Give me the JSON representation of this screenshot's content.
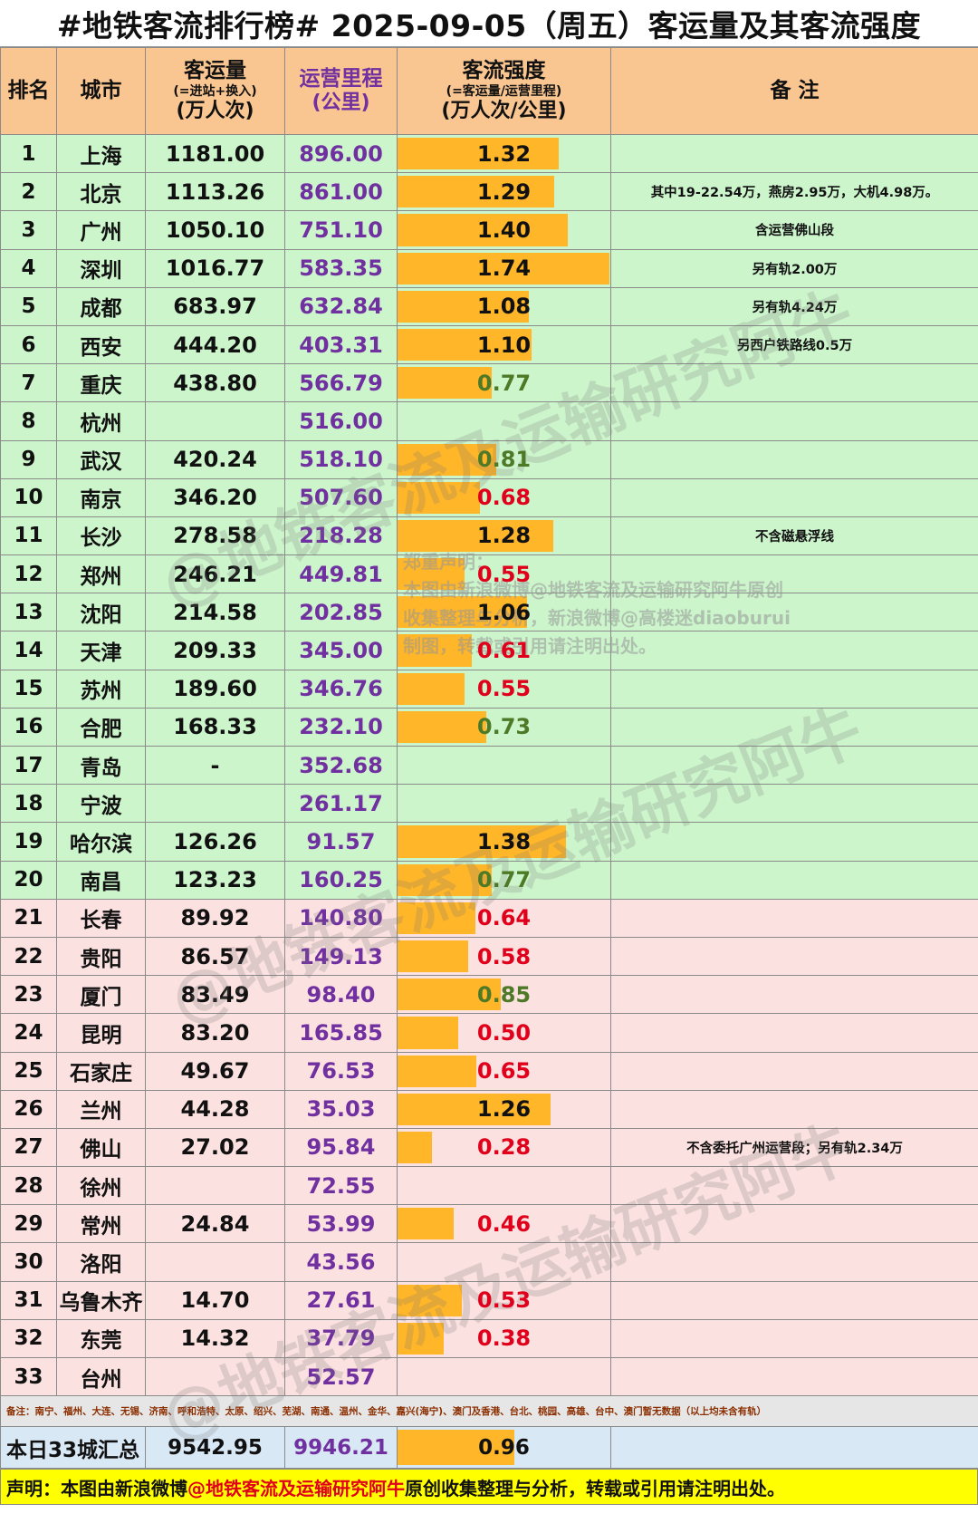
{
  "title": "#地铁客流排行榜# 2025-09-05（周五）客运量及其客流强度",
  "header": {
    "rank": "排名",
    "city": "城市",
    "ridership": "客运量",
    "ridership_sub": "(=进站+换入)",
    "ridership_unit": "(万人次)",
    "mileage": "运营里程",
    "mileage_unit": "(公里)",
    "intensity": "客流强度",
    "intensity_sub": "(=客运量/运营里程)",
    "intensity_unit": "(万人次/公里)",
    "note": "备 注"
  },
  "colors": {
    "header_bg": "#f9c590",
    "top20_bg": "#ccf5cc",
    "rest_bg": "#fbe1e0",
    "bar": "#ffb628",
    "mileage_text": "#7030a0",
    "low_value": "#e0001b",
    "mid_value": "#4e7a28"
  },
  "rows": [
    {
      "rank": "1",
      "city": "上海",
      "ridership": "1181.00",
      "mileage": "896.00",
      "intensity": "1.32",
      "note": ""
    },
    {
      "rank": "2",
      "city": "北京",
      "ridership": "1113.26",
      "mileage": "861.00",
      "intensity": "1.29",
      "note": "其中19-22.54万，燕房2.95万，大机4.98万。"
    },
    {
      "rank": "3",
      "city": "广州",
      "ridership": "1050.10",
      "mileage": "751.10",
      "intensity": "1.40",
      "note": "含运营佛山段"
    },
    {
      "rank": "4",
      "city": "深圳",
      "ridership": "1016.77",
      "mileage": "583.35",
      "intensity": "1.74",
      "note": "另有轨2.00万"
    },
    {
      "rank": "5",
      "city": "成都",
      "ridership": "683.97",
      "mileage": "632.84",
      "intensity": "1.08",
      "note": "另有轨4.24万"
    },
    {
      "rank": "6",
      "city": "西安",
      "ridership": "444.20",
      "mileage": "403.31",
      "intensity": "1.10",
      "note": "另西户铁路线0.5万"
    },
    {
      "rank": "7",
      "city": "重庆",
      "ridership": "438.80",
      "mileage": "566.79",
      "intensity": "0.77",
      "note": ""
    },
    {
      "rank": "8",
      "city": "杭州",
      "ridership": "",
      "mileage": "516.00",
      "intensity": "",
      "note": ""
    },
    {
      "rank": "9",
      "city": "武汉",
      "ridership": "420.24",
      "mileage": "518.10",
      "intensity": "0.81",
      "note": ""
    },
    {
      "rank": "10",
      "city": "南京",
      "ridership": "346.20",
      "mileage": "507.60",
      "intensity": "0.68",
      "note": ""
    },
    {
      "rank": "11",
      "city": "长沙",
      "ridership": "278.58",
      "mileage": "218.28",
      "intensity": "1.28",
      "note": "不含磁悬浮线"
    },
    {
      "rank": "12",
      "city": "郑州",
      "ridership": "246.21",
      "mileage": "449.81",
      "intensity": "0.55",
      "note": ""
    },
    {
      "rank": "13",
      "city": "沈阳",
      "ridership": "214.58",
      "mileage": "202.85",
      "intensity": "1.06",
      "note": ""
    },
    {
      "rank": "14",
      "city": "天津",
      "ridership": "209.33",
      "mileage": "345.00",
      "intensity": "0.61",
      "note": ""
    },
    {
      "rank": "15",
      "city": "苏州",
      "ridership": "189.60",
      "mileage": "346.76",
      "intensity": "0.55",
      "note": ""
    },
    {
      "rank": "16",
      "city": "合肥",
      "ridership": "168.33",
      "mileage": "232.10",
      "intensity": "0.73",
      "note": ""
    },
    {
      "rank": "17",
      "city": "青岛",
      "ridership": "-",
      "mileage": "352.68",
      "intensity": "",
      "note": ""
    },
    {
      "rank": "18",
      "city": "宁波",
      "ridership": "",
      "mileage": "261.17",
      "intensity": "",
      "note": ""
    },
    {
      "rank": "19",
      "city": "哈尔滨",
      "ridership": "126.26",
      "mileage": "91.57",
      "intensity": "1.38",
      "note": ""
    },
    {
      "rank": "20",
      "city": "南昌",
      "ridership": "123.23",
      "mileage": "160.25",
      "intensity": "0.77",
      "note": ""
    },
    {
      "rank": "21",
      "city": "长春",
      "ridership": "89.92",
      "mileage": "140.80",
      "intensity": "0.64",
      "note": ""
    },
    {
      "rank": "22",
      "city": "贵阳",
      "ridership": "86.57",
      "mileage": "149.13",
      "intensity": "0.58",
      "note": ""
    },
    {
      "rank": "23",
      "city": "厦门",
      "ridership": "83.49",
      "mileage": "98.40",
      "intensity": "0.85",
      "note": ""
    },
    {
      "rank": "24",
      "city": "昆明",
      "ridership": "83.20",
      "mileage": "165.85",
      "intensity": "0.50",
      "note": ""
    },
    {
      "rank": "25",
      "city": "石家庄",
      "ridership": "49.67",
      "mileage": "76.53",
      "intensity": "0.65",
      "note": ""
    },
    {
      "rank": "26",
      "city": "兰州",
      "ridership": "44.28",
      "mileage": "35.03",
      "intensity": "1.26",
      "note": ""
    },
    {
      "rank": "27",
      "city": "佛山",
      "ridership": "27.02",
      "mileage": "95.84",
      "intensity": "0.28",
      "note": "不含委托广州运营段；另有轨2.34万"
    },
    {
      "rank": "28",
      "city": "徐州",
      "ridership": "",
      "mileage": "72.55",
      "intensity": "",
      "note": ""
    },
    {
      "rank": "29",
      "city": "常州",
      "ridership": "24.84",
      "mileage": "53.99",
      "intensity": "0.46",
      "note": ""
    },
    {
      "rank": "30",
      "city": "洛阳",
      "ridership": "",
      "mileage": "43.56",
      "intensity": "",
      "note": ""
    },
    {
      "rank": "31",
      "city": "乌鲁木齐",
      "ridership": "14.70",
      "mileage": "27.61",
      "intensity": "0.53",
      "note": ""
    },
    {
      "rank": "32",
      "city": "东莞",
      "ridership": "14.32",
      "mileage": "37.79",
      "intensity": "0.38",
      "note": ""
    },
    {
      "rank": "33",
      "city": "台州",
      "ridership": "",
      "mileage": "52.57",
      "intensity": "",
      "note": ""
    }
  ],
  "remark": "备注：南宁、福州、大连、无锡、济南、呼和浩特、太原、绍兴、芜湖、南通、温州、金华、嘉兴(海宁)、澳门及香港、台北、桃园、高雄、台中、澳门暂无数据（以上均未含有轨）",
  "total": {
    "label": "本日33城汇总",
    "ridership": "9542.95",
    "mileage": "9946.21",
    "intensity": "0.96"
  },
  "stamp": {
    "line1": "郑重声明：",
    "line2": "本图由新浪微博@地铁客流及运输研究阿牛原创",
    "line3": "收集整理与分析，新浪微博@高楼迷diaoburui",
    "line4": "制图，转载或引用请注明出处。"
  },
  "watermark": "@地铁客流及运输研究阿牛",
  "footer": {
    "prefix": "声明：本图由新浪微博",
    "handle": "@地铁客流及运输研究阿牛",
    "suffix": " 原创收集整理与分析，转载或引用请注明出处。"
  }
}
